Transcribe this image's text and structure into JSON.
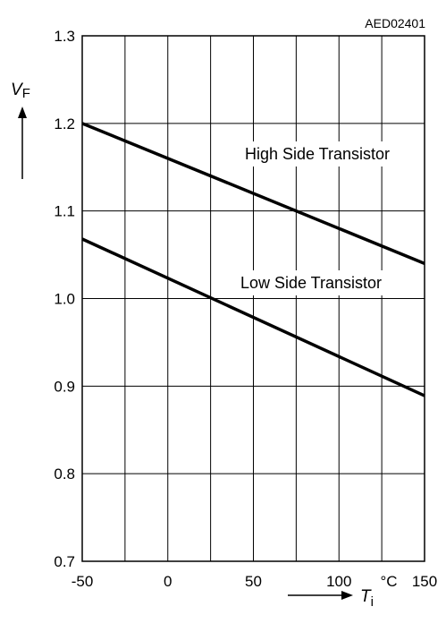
{
  "chart_data": {
    "type": "line",
    "figure_id": "AED02401",
    "ylabel": {
      "symbol": "V",
      "subscript": "F"
    },
    "xlabel": {
      "symbol": "T",
      "subscript": "i"
    },
    "x_unit": "°C",
    "xlim": [
      -50,
      150
    ],
    "ylim": [
      0.7,
      1.3
    ],
    "x_ticks": [
      -50,
      -25,
      0,
      25,
      50,
      75,
      100,
      125,
      150
    ],
    "x_tick_labels": [
      "-50",
      "",
      "0",
      "",
      "50",
      "",
      "100",
      "",
      "150"
    ],
    "y_ticks": [
      0.7,
      0.8,
      0.9,
      1.0,
      1.1,
      1.2,
      1.3
    ],
    "y_tick_labels": [
      "0.7",
      "0.8",
      "0.9",
      "1.0",
      "1.1",
      "1.2",
      "1.3"
    ],
    "grid": true,
    "series": [
      {
        "name": "High Side Transistor",
        "x": [
          -50,
          150
        ],
        "y": [
          1.2,
          1.04
        ]
      },
      {
        "name": "Low Side Transistor",
        "x": [
          -50,
          150
        ],
        "y": [
          1.068,
          0.889
        ]
      }
    ]
  }
}
